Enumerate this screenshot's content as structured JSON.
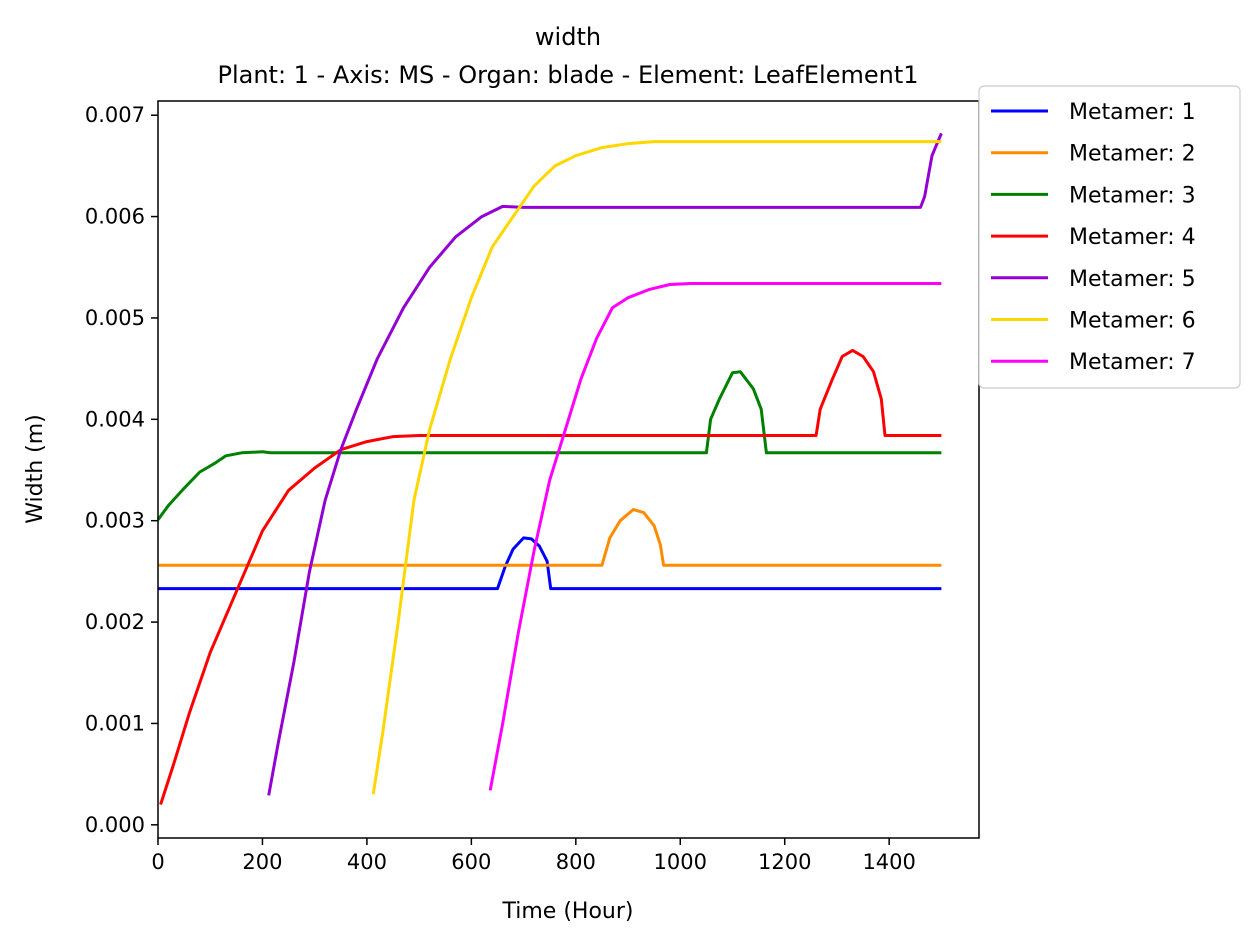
{
  "chart_data": {
    "type": "line",
    "title": "width",
    "subtitle": "Plant: 1 - Axis: MS - Organ: blade - Element: LeafElement1",
    "xlabel": "Time (Hour)",
    "ylabel": "Width (m)",
    "xlim": [
      0,
      1572
    ],
    "ylim": [
      -0.00013,
      0.00714
    ],
    "xticks": [
      0,
      200,
      400,
      600,
      800,
      1000,
      1200,
      1400
    ],
    "xtick_labels": [
      "0",
      "200",
      "400",
      "600",
      "800",
      "1000",
      "1200",
      "1400"
    ],
    "yticks": [
      0,
      0.001,
      0.002,
      0.003,
      0.004,
      0.005,
      0.006,
      0.007
    ],
    "ytick_labels": [
      "0.000",
      "0.001",
      "0.002",
      "0.003",
      "0.004",
      "0.005",
      "0.006",
      "0.007"
    ],
    "grid": false,
    "legend_position": "outside-top-right",
    "series": [
      {
        "name": "Metamer: 1",
        "color": "#0000ff",
        "points": [
          [
            0,
            0.00233
          ],
          [
            650,
            0.00233
          ],
          [
            665,
            0.00255
          ],
          [
            680,
            0.00272
          ],
          [
            700,
            0.00283
          ],
          [
            715,
            0.00282
          ],
          [
            730,
            0.00275
          ],
          [
            745,
            0.0026
          ],
          [
            752,
            0.00233
          ],
          [
            1500,
            0.00233
          ]
        ]
      },
      {
        "name": "Metamer: 2",
        "color": "#ff8c00",
        "points": [
          [
            0,
            0.00256
          ],
          [
            850,
            0.00256
          ],
          [
            865,
            0.00283
          ],
          [
            885,
            0.003
          ],
          [
            910,
            0.00311
          ],
          [
            930,
            0.00308
          ],
          [
            950,
            0.00295
          ],
          [
            962,
            0.00276
          ],
          [
            968,
            0.00256
          ],
          [
            1500,
            0.00256
          ]
        ]
      },
      {
        "name": "Metamer: 3",
        "color": "#008000",
        "points": [
          [
            0,
            0.00301
          ],
          [
            20,
            0.00315
          ],
          [
            50,
            0.00332
          ],
          [
            80,
            0.00348
          ],
          [
            110,
            0.00357
          ],
          [
            130,
            0.00364
          ],
          [
            160,
            0.00367
          ],
          [
            200,
            0.00368
          ],
          [
            215,
            0.00367
          ],
          [
            1050,
            0.00367
          ],
          [
            1058,
            0.004
          ],
          [
            1075,
            0.0042
          ],
          [
            1100,
            0.00446
          ],
          [
            1115,
            0.00447
          ],
          [
            1140,
            0.0043
          ],
          [
            1155,
            0.0041
          ],
          [
            1165,
            0.00367
          ],
          [
            1500,
            0.00367
          ]
        ]
      },
      {
        "name": "Metamer: 4",
        "color": "#ff0000",
        "points": [
          [
            5,
            0.0002
          ],
          [
            30,
            0.0006
          ],
          [
            60,
            0.0011
          ],
          [
            100,
            0.0017
          ],
          [
            150,
            0.0023
          ],
          [
            200,
            0.0029
          ],
          [
            250,
            0.0033
          ],
          [
            300,
            0.00352
          ],
          [
            350,
            0.0037
          ],
          [
            400,
            0.00378
          ],
          [
            450,
            0.00383
          ],
          [
            500,
            0.00384
          ],
          [
            1260,
            0.00384
          ],
          [
            1268,
            0.0041
          ],
          [
            1290,
            0.00438
          ],
          [
            1310,
            0.00462
          ],
          [
            1330,
            0.00468
          ],
          [
            1350,
            0.00462
          ],
          [
            1370,
            0.00447
          ],
          [
            1385,
            0.0042
          ],
          [
            1392,
            0.00384
          ],
          [
            1500,
            0.00384
          ]
        ]
      },
      {
        "name": "Metamer: 5",
        "color": "#9400d3",
        "points": [
          [
            212,
            0.00029
          ],
          [
            230,
            0.0008
          ],
          [
            260,
            0.0016
          ],
          [
            290,
            0.0025
          ],
          [
            320,
            0.0032
          ],
          [
            350,
            0.0037
          ],
          [
            380,
            0.0041
          ],
          [
            420,
            0.0046
          ],
          [
            470,
            0.0051
          ],
          [
            520,
            0.0055
          ],
          [
            570,
            0.0058
          ],
          [
            620,
            0.006
          ],
          [
            660,
            0.0061
          ],
          [
            700,
            0.00609
          ],
          [
            1460,
            0.00609
          ],
          [
            1468,
            0.0062
          ],
          [
            1475,
            0.0064
          ],
          [
            1482,
            0.0066
          ],
          [
            1490,
            0.0067
          ],
          [
            1500,
            0.00682
          ]
        ]
      },
      {
        "name": "Metamer: 6",
        "color": "#ffd700",
        "points": [
          [
            412,
            0.0003
          ],
          [
            430,
            0.0009
          ],
          [
            460,
            0.002
          ],
          [
            490,
            0.0032
          ],
          [
            520,
            0.0039
          ],
          [
            560,
            0.0046
          ],
          [
            600,
            0.0052
          ],
          [
            640,
            0.0057
          ],
          [
            680,
            0.006
          ],
          [
            720,
            0.0063
          ],
          [
            760,
            0.0065
          ],
          [
            800,
            0.0066
          ],
          [
            850,
            0.00668
          ],
          [
            900,
            0.00672
          ],
          [
            950,
            0.00674
          ],
          [
            1000,
            0.00674
          ],
          [
            1500,
            0.00674
          ]
        ]
      },
      {
        "name": "Metamer: 7",
        "color": "#ff00ff",
        "points": [
          [
            636,
            0.00034
          ],
          [
            660,
            0.001
          ],
          [
            690,
            0.0019
          ],
          [
            720,
            0.0027
          ],
          [
            750,
            0.0034
          ],
          [
            780,
            0.0039
          ],
          [
            810,
            0.0044
          ],
          [
            840,
            0.0048
          ],
          [
            870,
            0.0051
          ],
          [
            900,
            0.0052
          ],
          [
            940,
            0.00528
          ],
          [
            980,
            0.00533
          ],
          [
            1020,
            0.00534
          ],
          [
            1500,
            0.00534
          ]
        ]
      }
    ]
  }
}
